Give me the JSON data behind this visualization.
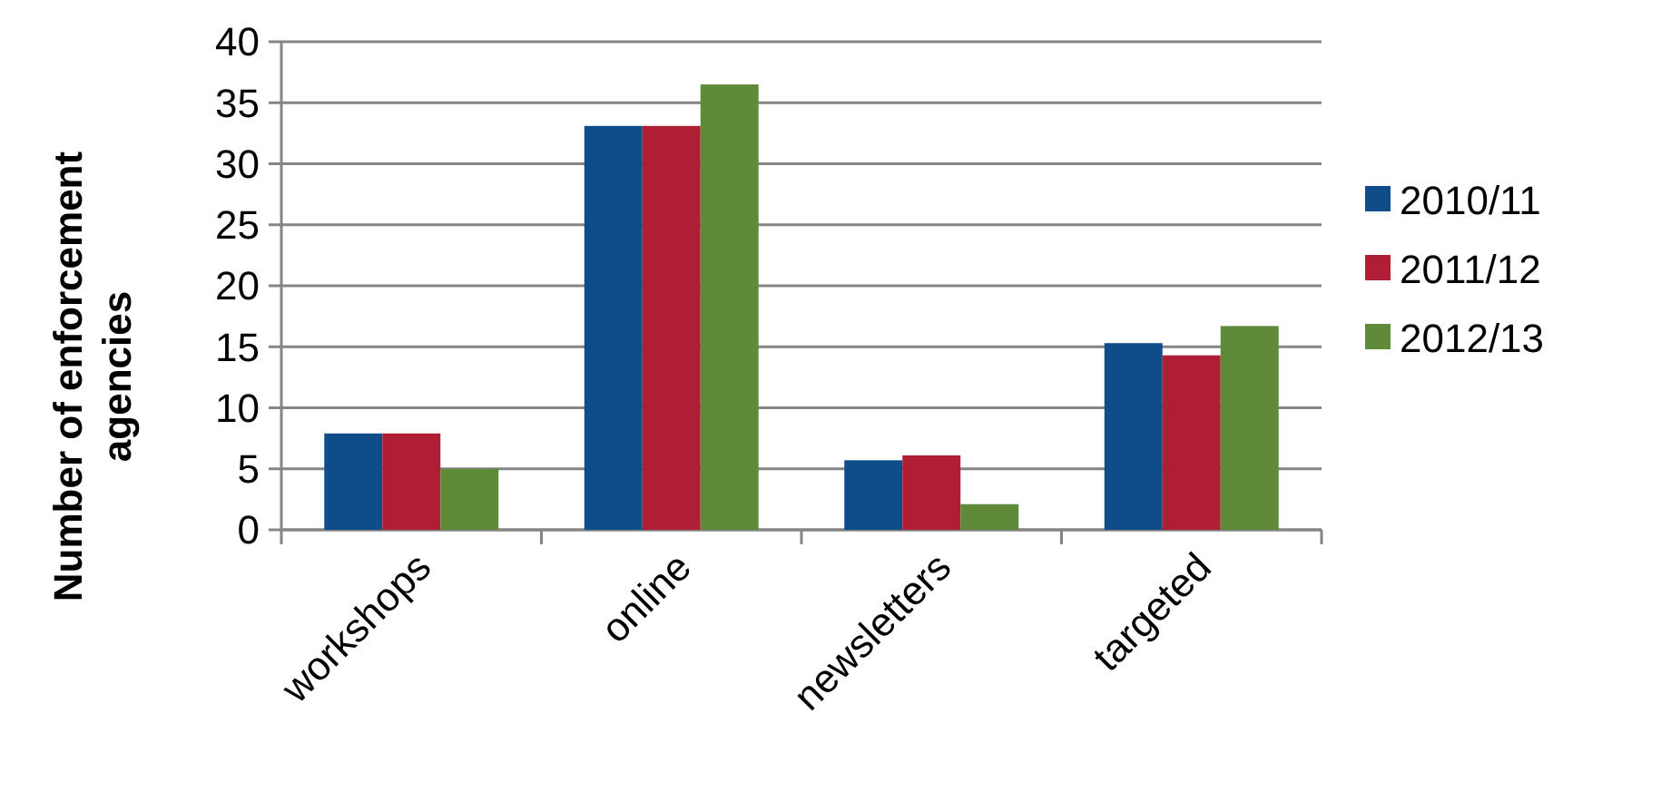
{
  "chart_data": {
    "type": "bar",
    "ylabel": "Number of enforcement agencies",
    "categories": [
      "workshops",
      "online",
      "newsletters",
      "targeted"
    ],
    "series": [
      {
        "name": "2010/11",
        "color": "#0e4c8a",
        "values": [
          7.9,
          33.1,
          5.7,
          15.3
        ]
      },
      {
        "name": "2011/12",
        "color": "#b01e35",
        "values": [
          7.9,
          33.1,
          6.1,
          14.3
        ]
      },
      {
        "name": "2012/13",
        "color": "#5e8a3a",
        "values": [
          5.0,
          36.5,
          2.1,
          16.7
        ]
      }
    ],
    "ylim": [
      0,
      40
    ],
    "yticks": [
      0,
      5,
      10,
      15,
      20,
      25,
      30,
      35,
      40
    ],
    "grid": "y",
    "legend": "right"
  }
}
